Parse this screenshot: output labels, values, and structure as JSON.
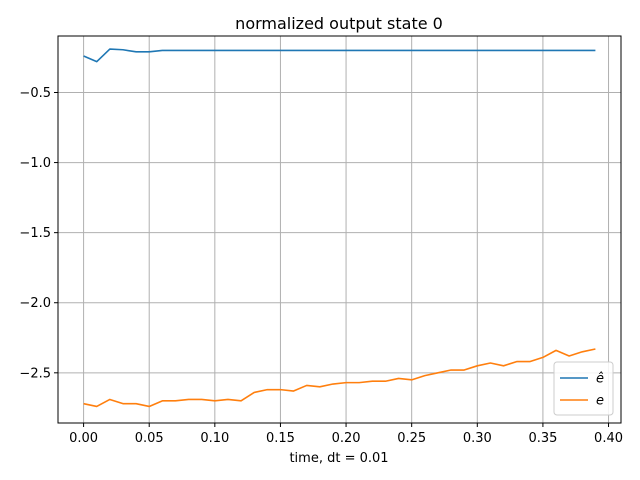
{
  "chart_data": {
    "type": "line",
    "title": "normalized output state 0",
    "xlabel": "time, dt = 0.01",
    "ylabel": "",
    "xlim": [
      -0.0195,
      0.4095
    ],
    "ylim": [
      -2.858,
      -0.097
    ],
    "xticks": [
      0.0,
      0.05,
      0.1,
      0.15,
      0.2,
      0.25,
      0.3,
      0.35,
      0.4
    ],
    "xtick_labels": [
      "0.00",
      "0.05",
      "0.10",
      "0.15",
      "0.20",
      "0.25",
      "0.30",
      "0.35",
      "0.40"
    ],
    "yticks": [
      -0.5,
      -1.0,
      -1.5,
      -2.0,
      -2.5
    ],
    "ytick_labels": [
      "−0.5",
      "−1.0",
      "−1.5",
      "−2.0",
      "−2.5"
    ],
    "grid": true,
    "legend_position": "lower-right",
    "x": [
      0.0,
      0.01,
      0.02,
      0.03,
      0.04,
      0.05,
      0.06,
      0.07,
      0.08,
      0.09,
      0.1,
      0.11,
      0.12,
      0.13,
      0.14,
      0.15,
      0.16,
      0.17,
      0.18,
      0.19,
      0.2,
      0.21,
      0.22,
      0.23,
      0.24,
      0.25,
      0.26,
      0.27,
      0.28,
      0.29,
      0.3,
      0.31,
      0.32,
      0.33,
      0.34,
      0.35,
      0.36,
      0.37,
      0.38,
      0.39
    ],
    "series": [
      {
        "name": "ê",
        "color": "#1f77b4",
        "values": [
          -0.24,
          -0.28,
          -0.19,
          -0.195,
          -0.21,
          -0.21,
          -0.2,
          -0.2,
          -0.2,
          -0.2,
          -0.2,
          -0.2,
          -0.2,
          -0.2,
          -0.2,
          -0.2,
          -0.2,
          -0.2,
          -0.2,
          -0.2,
          -0.2,
          -0.2,
          -0.2,
          -0.2,
          -0.2,
          -0.2,
          -0.2,
          -0.2,
          -0.2,
          -0.2,
          -0.2,
          -0.2,
          -0.2,
          -0.2,
          -0.2,
          -0.2,
          -0.2,
          -0.2,
          -0.2,
          -0.2
        ]
      },
      {
        "name": "e",
        "color": "#ff7f0e",
        "values": [
          -2.72,
          -2.74,
          -2.69,
          -2.72,
          -2.72,
          -2.74,
          -2.7,
          -2.7,
          -2.69,
          -2.69,
          -2.7,
          -2.69,
          -2.7,
          -2.64,
          -2.62,
          -2.62,
          -2.63,
          -2.59,
          -2.6,
          -2.58,
          -2.57,
          -2.57,
          -2.56,
          -2.56,
          -2.54,
          -2.55,
          -2.52,
          -2.5,
          -2.48,
          -2.48,
          -2.45,
          -2.43,
          -2.45,
          -2.42,
          -2.42,
          -2.39,
          -2.34,
          -2.38,
          -2.35,
          -2.33
        ]
      }
    ]
  }
}
